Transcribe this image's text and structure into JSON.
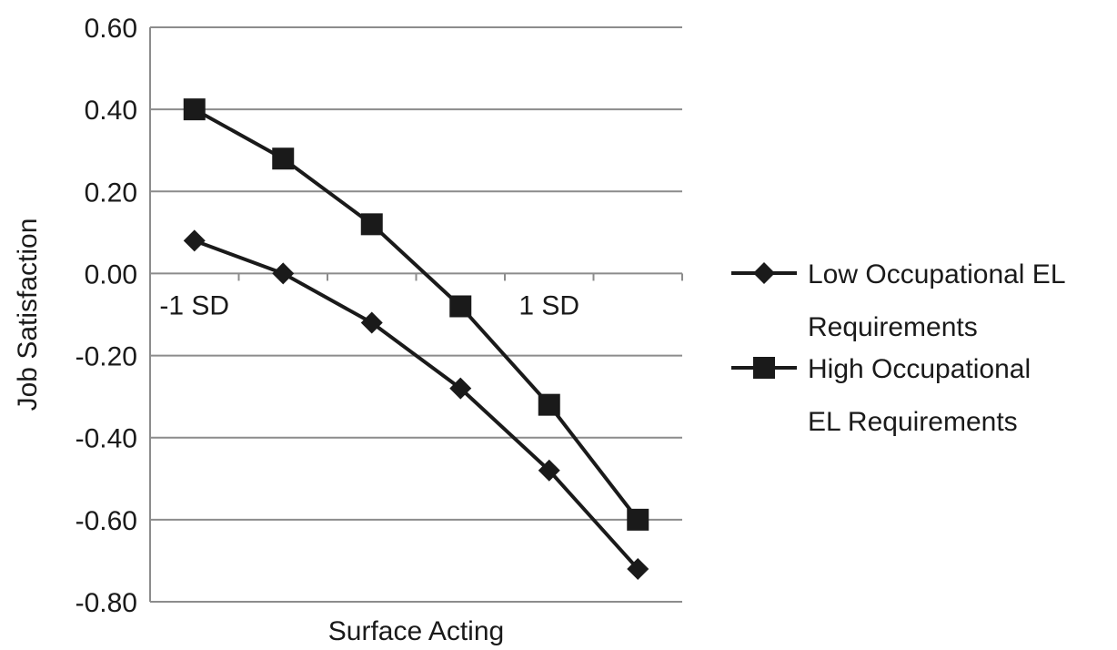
{
  "chart_data": {
    "type": "line",
    "title": "",
    "xlabel": "Surface Acting",
    "ylabel": "Job Satisfaction",
    "x_tick_labels": [
      "-1 SD",
      "1 SD"
    ],
    "x": [
      1,
      2,
      3,
      4,
      5,
      6
    ],
    "ylim": [
      -0.8,
      0.6
    ],
    "y_ticks": [
      0.6,
      0.4,
      0.2,
      0.0,
      -0.2,
      -0.4,
      -0.6,
      -0.8
    ],
    "y_tick_labels": [
      "0.60",
      "0.40",
      "0.20",
      "0.00",
      "-0.20",
      "-0.40",
      "-0.60",
      "-0.80"
    ],
    "grid": true,
    "legend_placement": "right",
    "series": [
      {
        "name": "Low Occupational EL Requirements",
        "legend_lines": [
          "Low Occupational EL",
          "Requirements"
        ],
        "marker": "diamond",
        "color": "#1a1a1a",
        "values": [
          0.08,
          0.0,
          -0.12,
          -0.28,
          -0.48,
          -0.72
        ]
      },
      {
        "name": "High Occupational EL Requirements",
        "legend_lines": [
          "High Occupational",
          "EL Requirements"
        ],
        "marker": "square",
        "color": "#1a1a1a",
        "values": [
          0.4,
          0.28,
          0.12,
          -0.08,
          -0.32,
          -0.6
        ]
      }
    ]
  }
}
